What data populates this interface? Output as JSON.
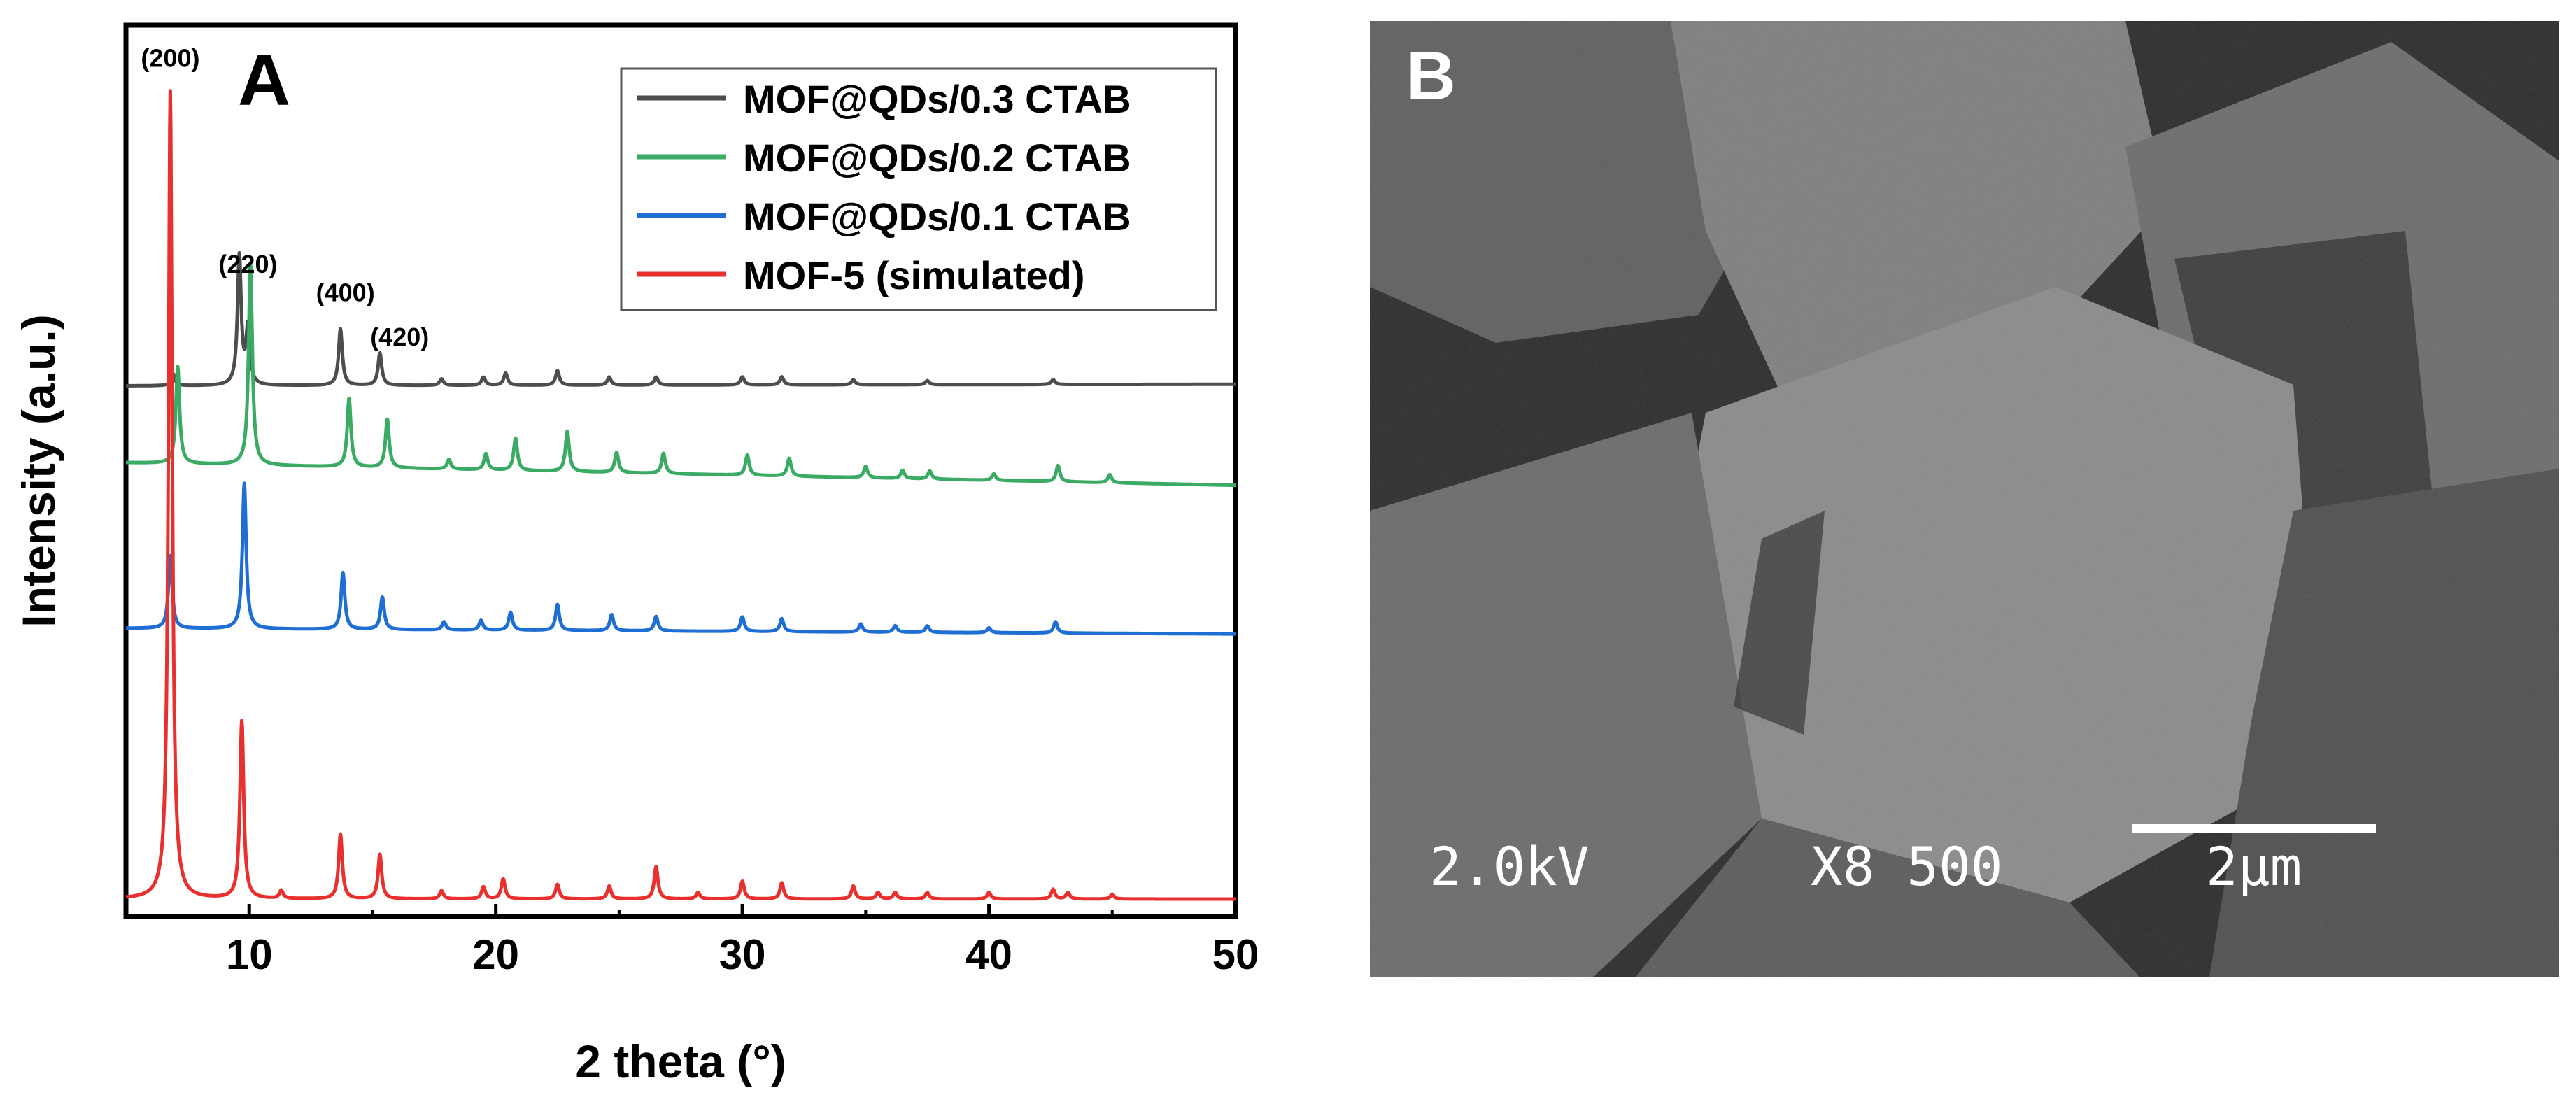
{
  "chart_data": {
    "type": "line",
    "panel_label": "A",
    "xlabel": "2 theta (°)",
    "ylabel": "Intensity (a.u.)",
    "xlim": [
      5,
      50
    ],
    "xticks": [
      10,
      20,
      30,
      40,
      50
    ],
    "grid": false,
    "legend_position": "top-right",
    "series": [
      {
        "name": "MOF@QDs/0.3 CTAB",
        "color": "#4d4d4d",
        "baseline": 0.635,
        "background": [
          0,
          0.002
        ],
        "peaks": [
          [
            6.9,
            0.015
          ],
          [
            9.6,
            0.16
          ],
          [
            9.95,
            0.07
          ],
          [
            13.7,
            0.07
          ],
          [
            15.3,
            0.04
          ],
          [
            17.8,
            0.008
          ],
          [
            19.5,
            0.01
          ],
          [
            20.4,
            0.015
          ],
          [
            22.5,
            0.018
          ],
          [
            24.6,
            0.01
          ],
          [
            26.5,
            0.01
          ],
          [
            30,
            0.01
          ],
          [
            31.6,
            0.01
          ],
          [
            34.5,
            0.006
          ],
          [
            37.5,
            0.005
          ],
          [
            42.6,
            0.006
          ]
        ]
      },
      {
        "name": "MOF@QDs/0.2 CTAB",
        "color": "#3aaa64",
        "baseline": 0.52,
        "background": [
          0.02,
          -0.008
        ],
        "peaks": [
          [
            7.1,
            0.12
          ],
          [
            10.05,
            0.25
          ],
          [
            14.05,
            0.085
          ],
          [
            15.6,
            0.06
          ],
          [
            18.1,
            0.012
          ],
          [
            19.6,
            0.02
          ],
          [
            20.8,
            0.04
          ],
          [
            22.9,
            0.05
          ],
          [
            24.9,
            0.025
          ],
          [
            26.8,
            0.025
          ],
          [
            30.2,
            0.025
          ],
          [
            31.9,
            0.022
          ],
          [
            35,
            0.014
          ],
          [
            36.5,
            0.01
          ],
          [
            37.6,
            0.01
          ],
          [
            40.2,
            0.008
          ],
          [
            42.8,
            0.02
          ],
          [
            44.9,
            0.01
          ]
        ]
      },
      {
        "name": "MOF@QDs/0.1 CTAB",
        "color": "#1f6ed4",
        "baseline": 0.33,
        "background": [
          0.005,
          -0.002
        ],
        "peaks": [
          [
            6.8,
            0.09
          ],
          [
            9.8,
            0.18
          ],
          [
            13.8,
            0.07
          ],
          [
            15.4,
            0.04
          ],
          [
            17.9,
            0.01
          ],
          [
            19.4,
            0.012
          ],
          [
            20.6,
            0.022
          ],
          [
            22.5,
            0.032
          ],
          [
            24.7,
            0.02
          ],
          [
            26.5,
            0.018
          ],
          [
            30,
            0.018
          ],
          [
            31.6,
            0.016
          ],
          [
            34.8,
            0.01
          ],
          [
            36.2,
            0.008
          ],
          [
            37.5,
            0.008
          ],
          [
            40,
            0.006
          ],
          [
            42.7,
            0.014
          ]
        ]
      },
      {
        "name": "MOF-5 (simulated)",
        "color": "#e8302f",
        "baseline": 0.0,
        "background": [
          0,
          0
        ],
        "peaks": [
          [
            6.8,
            1.0
          ],
          [
            9.7,
            0.22
          ],
          [
            11.3,
            0.01
          ],
          [
            13.7,
            0.08
          ],
          [
            15.3,
            0.055
          ],
          [
            17.8,
            0.01
          ],
          [
            19.5,
            0.015
          ],
          [
            20.3,
            0.025
          ],
          [
            22.5,
            0.018
          ],
          [
            24.6,
            0.016
          ],
          [
            26.5,
            0.04
          ],
          [
            28.2,
            0.008
          ],
          [
            30,
            0.022
          ],
          [
            31.6,
            0.02
          ],
          [
            34.5,
            0.016
          ],
          [
            35.5,
            0.008
          ],
          [
            36.2,
            0.008
          ],
          [
            37.5,
            0.008
          ],
          [
            40,
            0.008
          ],
          [
            42.6,
            0.012
          ],
          [
            43.2,
            0.008
          ],
          [
            45,
            0.006
          ]
        ]
      }
    ],
    "annotations": [
      {
        "text": "(200)",
        "x": 6.8,
        "y": 1.03
      },
      {
        "text": "(220)",
        "x": 9.95,
        "y": 0.775
      },
      {
        "text": "(400)",
        "x": 13.9,
        "y": 0.74
      },
      {
        "text": "(420)",
        "x": 16.1,
        "y": 0.685
      }
    ]
  },
  "sem": {
    "panel_label": "B",
    "voltage": "2.0kV",
    "magnification": "X8 500",
    "scale_bar": "2μm"
  }
}
